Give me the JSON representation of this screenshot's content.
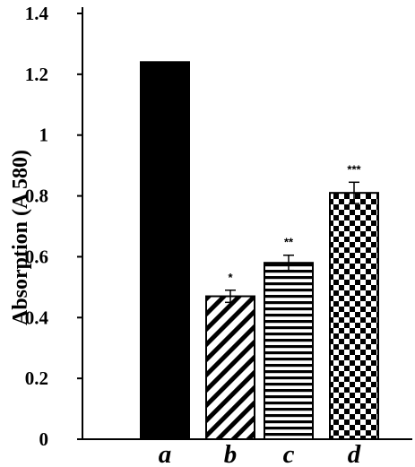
{
  "chart_data": {
    "type": "bar",
    "title": "",
    "xlabel": "",
    "ylabel": "Absorption (A 580)",
    "ylim": [
      0,
      1.4
    ],
    "yticks": [
      {
        "value": 0,
        "label": "0"
      },
      {
        "value": 0.2,
        "label": "0.2"
      },
      {
        "value": 0.4,
        "label": "0.4"
      },
      {
        "value": 0.6,
        "label": "0.6"
      },
      {
        "value": 0.8,
        "label": "0.8"
      },
      {
        "value": 1,
        "label": "1"
      },
      {
        "value": 1.2,
        "label": "1.2"
      },
      {
        "value": 1.4,
        "label": "1.4"
      }
    ],
    "categories": [
      "a",
      "b",
      "c",
      "d"
    ],
    "values": [
      1.24,
      0.47,
      0.58,
      0.81
    ],
    "errors": [
      0,
      0.02,
      0.025,
      0.035
    ],
    "annotations": [
      "",
      "*",
      "**",
      "***"
    ],
    "fills": [
      "solid",
      "diagonal-stripes",
      "horizontal-stripes",
      "checkerboard"
    ],
    "grid": false,
    "legend": "none",
    "colors": {
      "bar": "#000000",
      "background": "#ffffff"
    }
  }
}
